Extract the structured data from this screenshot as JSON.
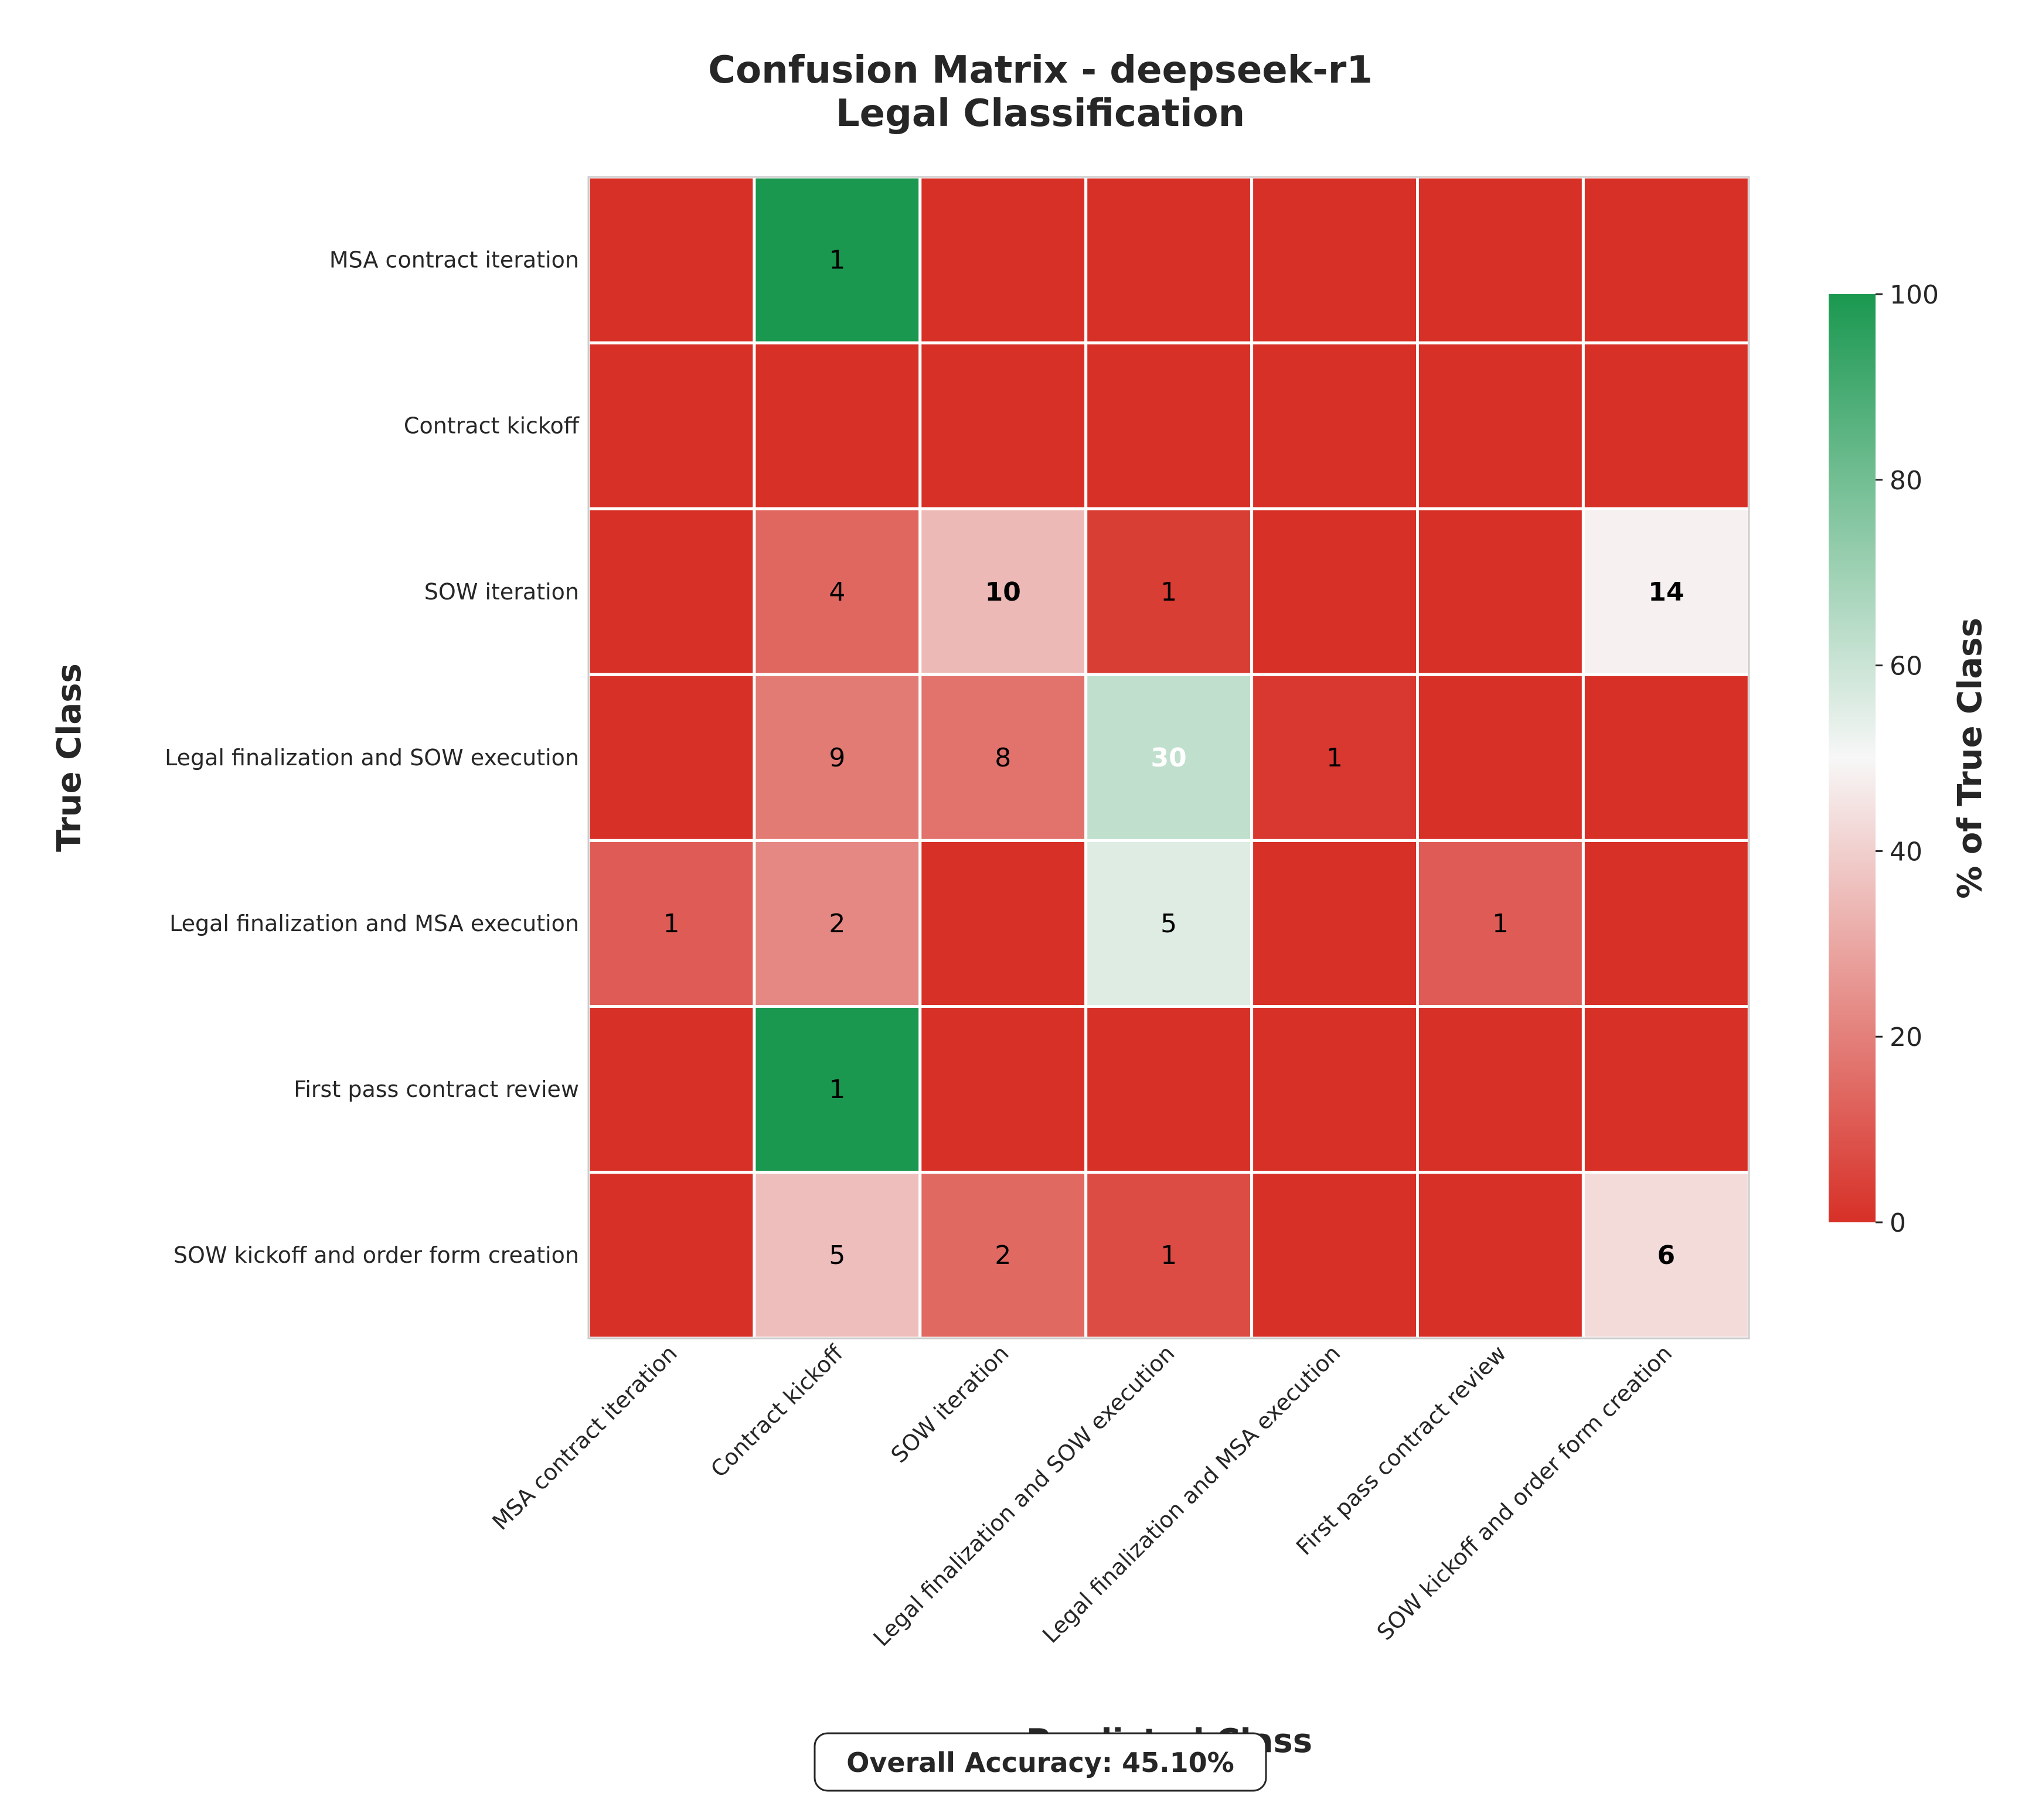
{
  "chart_data": {
    "type": "heatmap",
    "title": "Confusion Matrix - deepseek-r1",
    "subtitle": "Legal Classification",
    "xlabel": "Predicted Class",
    "ylabel": "True Class",
    "categories": [
      "MSA contract iteration",
      "Contract kickoff",
      "SOW iteration",
      "Legal finalization and SOW execution",
      "Legal finalization and MSA execution",
      "First pass contract review",
      "SOW kickoff and order form creation"
    ],
    "counts": [
      [
        0,
        1,
        0,
        0,
        0,
        0,
        0
      ],
      [
        0,
        0,
        0,
        0,
        0,
        0,
        0
      ],
      [
        0,
        4,
        10,
        1,
        0,
        0,
        14
      ],
      [
        0,
        9,
        8,
        30,
        1,
        0,
        0
      ],
      [
        1,
        2,
        0,
        5,
        0,
        1,
        0
      ],
      [
        0,
        1,
        0,
        0,
        0,
        0,
        0
      ],
      [
        0,
        5,
        2,
        1,
        0,
        0,
        6
      ]
    ],
    "colorbar": {
      "label": "% of True Class",
      "range": [
        0,
        100
      ],
      "ticks": [
        "0",
        "20",
        "40",
        "60",
        "80",
        "100"
      ],
      "colors": {
        "low": "#d73027",
        "mid": "#f7f7f7",
        "high": "#1a9850"
      }
    },
    "annotation": "Overall Accuracy: 45.10%"
  }
}
